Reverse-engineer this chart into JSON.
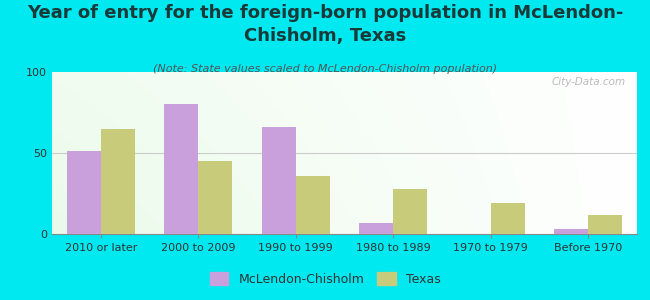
{
  "title": "Year of entry for the foreign-born population in McLendon-\nChisholm, Texas",
  "subtitle": "(Note: State values scaled to McLendon-Chisholm population)",
  "categories": [
    "2010 or later",
    "2000 to 2009",
    "1990 to 1999",
    "1980 to 1989",
    "1970 to 1979",
    "Before 1970"
  ],
  "mclendon_values": [
    51,
    80,
    66,
    7,
    0,
    3
  ],
  "texas_values": [
    65,
    45,
    36,
    28,
    19,
    12
  ],
  "mclendon_color": "#c9a0dc",
  "texas_color": "#c8cc7a",
  "background_color": "#00e8f0",
  "ylim": [
    0,
    100
  ],
  "yticks": [
    0,
    50,
    100
  ],
  "bar_width": 0.35,
  "legend_mclendon": "McLendon-Chisholm",
  "legend_texas": "Texas",
  "watermark": "City-Data.com",
  "title_fontsize": 13,
  "subtitle_fontsize": 8,
  "axis_label_fontsize": 8,
  "legend_fontsize": 9,
  "title_color": "#1a3a3a",
  "subtitle_color": "#555555"
}
